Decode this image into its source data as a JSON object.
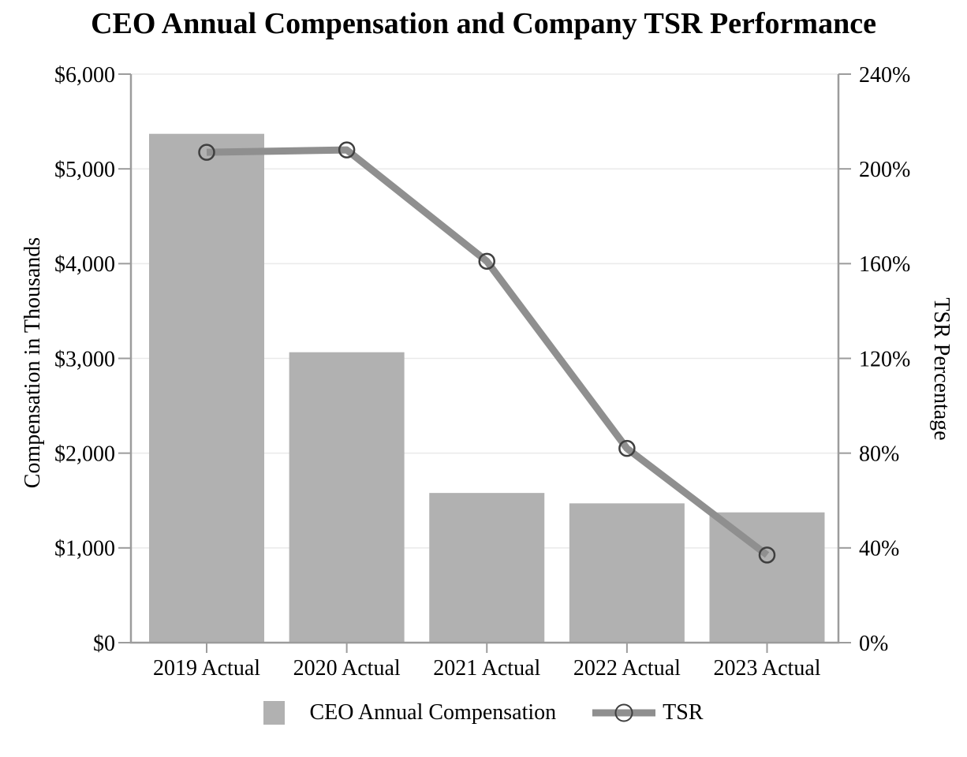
{
  "chart_data": {
    "type": "bar+line combo",
    "title": "CEO Annual Compensation and Company TSR Performance",
    "categories": [
      "2019 Actual",
      "2020 Actual",
      "2021 Actual",
      "2022 Actual",
      "2023 Actual"
    ],
    "series": [
      {
        "name": "CEO Annual Compensation",
        "type": "bar",
        "yaxis": "left",
        "unit": "USD thousands",
        "values": [
          5370,
          3065,
          1580,
          1470,
          1375
        ]
      },
      {
        "name": "TSR",
        "type": "line",
        "yaxis": "right",
        "unit": "percent",
        "marker": "open-circle",
        "values": [
          207,
          208,
          161,
          82,
          37
        ]
      }
    ],
    "left_axis": {
      "label": "Compensation in Thousands",
      "lim": [
        0,
        6000
      ],
      "tick_step": 1000,
      "tick_labels": [
        "$0",
        "$1,000",
        "$2,000",
        "$3,000",
        "$4,000",
        "$5,000",
        "$6,000"
      ]
    },
    "right_axis": {
      "label": "TSR Percentage",
      "lim": [
        0,
        240
      ],
      "tick_step": 40,
      "tick_labels": [
        "0%",
        "40%",
        "80%",
        "120%",
        "160%",
        "200%",
        "240%"
      ]
    },
    "grid": "horizontal",
    "legend_position": "bottom"
  },
  "colors": {
    "background": "#ffffff",
    "bar": "#b1b1b1",
    "line": "#8f8f8f",
    "marker": "#3f3f3f",
    "axis": "#9c9c9c",
    "gridline": "#eaeaea",
    "text": "#000000"
  }
}
